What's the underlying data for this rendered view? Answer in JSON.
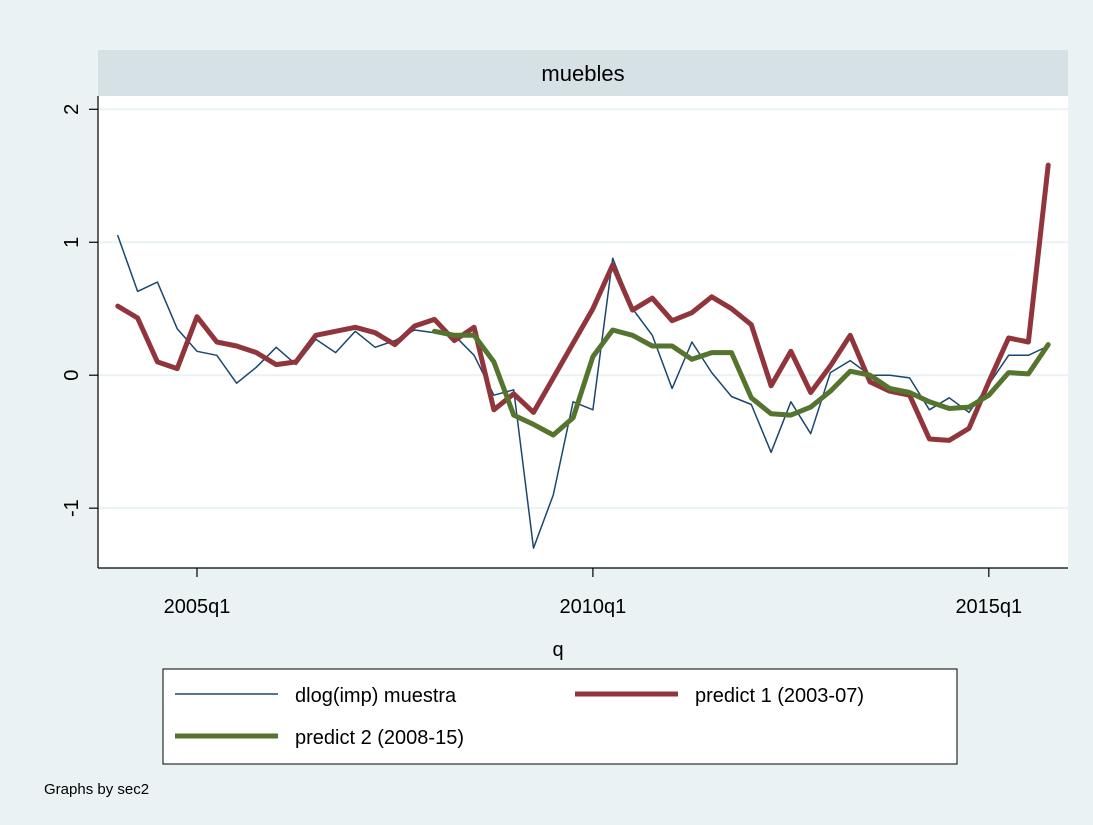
{
  "panel_title": "muebles",
  "note": "Graphs by sec2",
  "colors": {
    "outer_bg": "#eaf2f3",
    "plot_bg": "#ffffff",
    "title_strip": "#d6e1e5",
    "grid": "#eaf2f3",
    "axis": "#000000",
    "series_actual": "#1a476f",
    "series_p1": "#90353b",
    "series_p2": "#55752f"
  },
  "chart_data": {
    "type": "line",
    "title": "muebles",
    "xlabel": "q",
    "ylabel": "",
    "x_tick_labels": [
      "2005q1",
      "2010q1",
      "2015q1"
    ],
    "x_tick_values": [
      2005.0,
      2010.0,
      2015.0
    ],
    "y_tick_labels": [
      "2",
      "1",
      "0",
      "-1"
    ],
    "y_tick_values": [
      2,
      1,
      0,
      -1
    ],
    "xlim": [
      2003.75,
      2016.0
    ],
    "ylim": [
      -1.45,
      2.1
    ],
    "grid": true,
    "legend_position": "bottom",
    "series": [
      {
        "name": "dlog(imp) muestra",
        "color": "#1a476f",
        "width": 1.5,
        "x": [
          2004.0,
          2004.25,
          2004.5,
          2004.75,
          2005.0,
          2005.25,
          2005.5,
          2005.75,
          2006.0,
          2006.25,
          2006.5,
          2006.75,
          2007.0,
          2007.25,
          2007.5,
          2007.75,
          2008.0,
          2008.25,
          2008.5,
          2008.75,
          2009.0,
          2009.25,
          2009.5,
          2009.75,
          2010.0,
          2010.25,
          2010.5,
          2010.75,
          2011.0,
          2011.25,
          2011.5,
          2011.75,
          2012.0,
          2012.25,
          2012.5,
          2012.75,
          2013.0,
          2013.25,
          2013.5,
          2013.75,
          2014.0,
          2014.25,
          2014.5,
          2014.75,
          2015.0,
          2015.25,
          2015.5,
          2015.75
        ],
        "y": [
          1.05,
          0.63,
          0.7,
          0.35,
          0.18,
          0.15,
          -0.06,
          0.06,
          0.21,
          0.08,
          0.27,
          0.17,
          0.33,
          0.21,
          0.26,
          0.34,
          0.32,
          0.3,
          0.15,
          -0.15,
          -0.11,
          -1.3,
          -0.9,
          -0.2,
          -0.26,
          0.88,
          0.5,
          0.3,
          -0.1,
          0.25,
          0.02,
          -0.16,
          -0.22,
          -0.58,
          -0.2,
          -0.44,
          0.02,
          0.11,
          0.0,
          0.0,
          -0.02,
          -0.26,
          -0.17,
          -0.28,
          -0.07,
          0.15,
          0.15,
          0.22
        ]
      },
      {
        "name": "predict 1 (2003-07)",
        "color": "#90353b",
        "width": 5,
        "x": [
          2004.0,
          2004.25,
          2004.5,
          2004.75,
          2005.0,
          2005.25,
          2005.5,
          2005.75,
          2006.0,
          2006.25,
          2006.5,
          2006.75,
          2007.0,
          2007.25,
          2007.5,
          2007.75,
          2008.0,
          2008.25,
          2008.5,
          2008.75,
          2009.0,
          2009.25,
          2009.5,
          2009.75,
          2010.0,
          2010.25,
          2010.5,
          2010.75,
          2011.0,
          2011.25,
          2011.5,
          2011.75,
          2012.0,
          2012.25,
          2012.5,
          2012.75,
          2013.0,
          2013.25,
          2013.5,
          2013.75,
          2014.0,
          2014.25,
          2014.5,
          2014.75,
          2015.0,
          2015.25,
          2015.5,
          2015.75
        ],
        "y": [
          0.52,
          0.43,
          0.1,
          0.05,
          0.44,
          0.25,
          0.22,
          0.17,
          0.08,
          0.1,
          0.3,
          0.33,
          0.36,
          0.32,
          0.23,
          0.37,
          0.42,
          0.26,
          0.36,
          -0.26,
          -0.14,
          -0.28,
          -0.02,
          0.24,
          0.5,
          0.83,
          0.49,
          0.58,
          0.41,
          0.47,
          0.59,
          0.5,
          0.38,
          -0.08,
          0.18,
          -0.13,
          0.07,
          0.3,
          -0.05,
          -0.12,
          -0.15,
          -0.48,
          -0.49,
          -0.4,
          -0.05,
          0.28,
          0.25,
          1.58
        ]
      },
      {
        "name": "predict 2 (2008-15)",
        "color": "#55752f",
        "width": 5,
        "x": [
          2008.0,
          2008.25,
          2008.5,
          2008.75,
          2009.0,
          2009.25,
          2009.5,
          2009.75,
          2010.0,
          2010.25,
          2010.5,
          2010.75,
          2011.0,
          2011.25,
          2011.5,
          2011.75,
          2012.0,
          2012.25,
          2012.5,
          2012.75,
          2013.0,
          2013.25,
          2013.5,
          2013.75,
          2014.0,
          2014.25,
          2014.5,
          2014.75,
          2015.0,
          2015.25,
          2015.5,
          2015.75
        ],
        "y": [
          0.33,
          0.3,
          0.3,
          0.1,
          -0.3,
          -0.37,
          -0.45,
          -0.32,
          0.14,
          0.34,
          0.3,
          0.22,
          0.22,
          0.12,
          0.17,
          0.17,
          -0.17,
          -0.29,
          -0.3,
          -0.24,
          -0.12,
          0.03,
          0.0,
          -0.1,
          -0.13,
          -0.2,
          -0.25,
          -0.24,
          -0.15,
          0.02,
          0.01,
          0.23
        ]
      }
    ]
  }
}
